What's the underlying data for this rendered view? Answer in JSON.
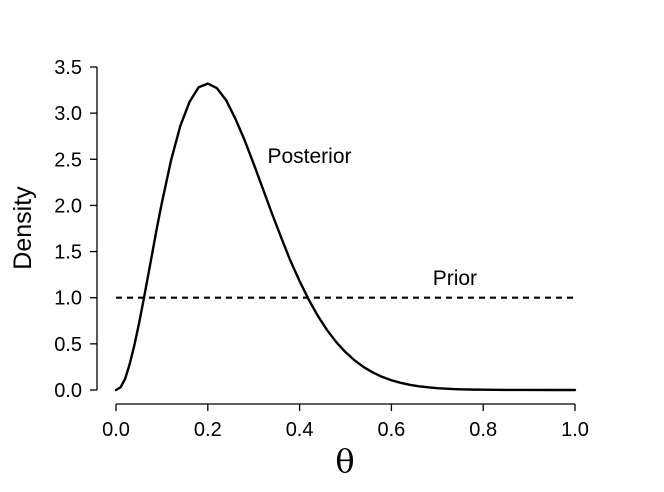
{
  "chart_data": {
    "type": "line",
    "title": "",
    "xlabel": "θ",
    "ylabel": "Density",
    "xlim": [
      0,
      1
    ],
    "ylim": [
      0,
      3.5
    ],
    "x_ticks": [
      "0.0",
      "0.2",
      "0.4",
      "0.6",
      "0.8",
      "1.0"
    ],
    "y_ticks": [
      "0.0",
      "0.5",
      "1.0",
      "1.5",
      "2.0",
      "2.5",
      "3.0",
      "3.5"
    ],
    "grid": false,
    "legend": "none",
    "series": [
      {
        "name": "Posterior",
        "style": "solid",
        "color": "#000000",
        "x": [
          0,
          0.01,
          0.02,
          0.03,
          0.04,
          0.05,
          0.06,
          0.07,
          0.08,
          0.09,
          0.1,
          0.12,
          0.14,
          0.16,
          0.18,
          0.2,
          0.22,
          0.24,
          0.26,
          0.28,
          0.3,
          0.32,
          0.34,
          0.36,
          0.38,
          0.4,
          0.42,
          0.44,
          0.46,
          0.48,
          0.5,
          0.52,
          0.54,
          0.56,
          0.58,
          0.6,
          0.62,
          0.64,
          0.66,
          0.68,
          0.7,
          0.72,
          0.74,
          0.76,
          0.78,
          0.8,
          0.85,
          0.9,
          0.95,
          1.0
        ],
        "values": [
          0,
          0.029,
          0.123,
          0.284,
          0.485,
          0.718,
          0.974,
          1.24,
          1.51,
          1.78,
          2.03,
          2.49,
          2.86,
          3.12,
          3.28,
          3.32,
          3.27,
          3.14,
          2.94,
          2.71,
          2.45,
          2.18,
          1.91,
          1.65,
          1.4,
          1.18,
          0.978,
          0.801,
          0.648,
          0.518,
          0.41,
          0.32,
          0.247,
          0.189,
          0.142,
          0.106,
          0.078,
          0.056,
          0.04,
          0.029,
          0.02,
          0.014,
          0.009,
          0.006,
          0.004,
          0.003,
          0.001,
          0.0002,
          1e-05,
          0
        ]
      },
      {
        "name": "Prior",
        "style": "dashed",
        "color": "#000000",
        "x": [
          0,
          1
        ],
        "values": [
          1,
          1
        ]
      }
    ],
    "annotations": [
      {
        "text": "Posterior",
        "x": 0.33,
        "y": 2.46
      },
      {
        "text": "Prior",
        "x": 0.69,
        "y": 1.14
      }
    ]
  }
}
